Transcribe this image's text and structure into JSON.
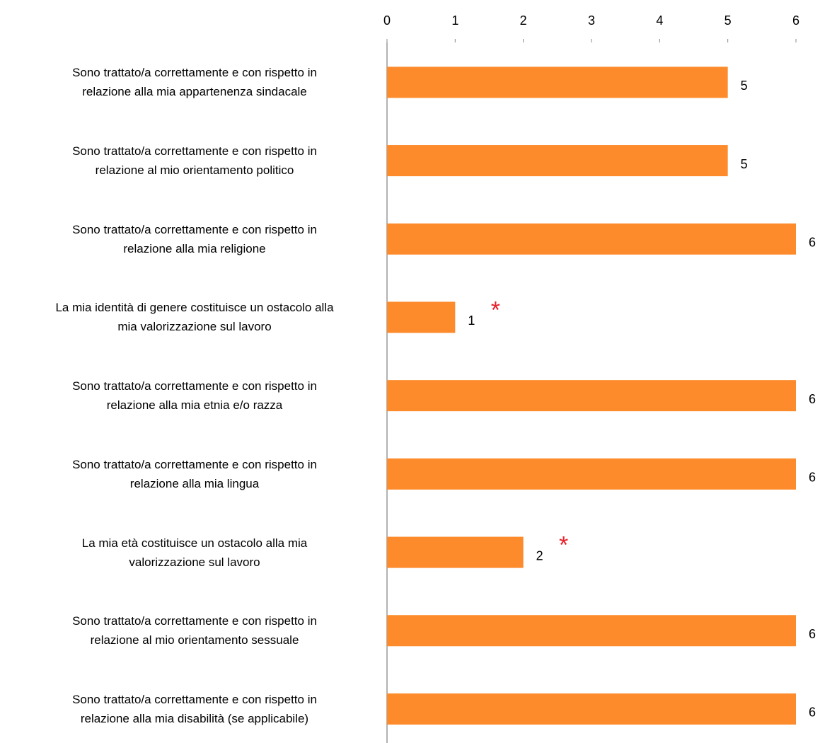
{
  "chart_data": {
    "type": "bar",
    "orientation": "horizontal",
    "categories": [
      "Sono trattato/a correttamente e con rispetto in\nrelazione alla mia appartenenza sindacale",
      "Sono trattato/a correttamente e con rispetto in\nrelazione al mio orientamento politico",
      "Sono trattato/a correttamente e con rispetto in\nrelazione alla mia religione",
      "La mia identità di genere costituisce un ostacolo alla\nmia valorizzazione sul lavoro",
      "Sono trattato/a correttamente e con rispetto in\nrelazione alla mia etnia e/o razza",
      "Sono trattato/a correttamente e con rispetto in\nrelazione alla mia lingua",
      "La mia età costituisce un ostacolo alla mia\nvalorizzazione sul lavoro",
      "Sono trattato/a correttamente e con rispetto in\nrelazione al mio orientamento sessuale",
      "Sono trattato/a correttamente e con rispetto in\nrelazione alla mia disabilità (se applicabile)"
    ],
    "values": [
      5,
      5,
      6,
      1,
      6,
      6,
      2,
      6,
      6
    ],
    "color": "#fd8a2b",
    "xlim": [
      0,
      6
    ],
    "xticks": [
      0,
      1,
      2,
      3,
      4,
      5,
      6
    ],
    "annotations": [
      {
        "category": "La mia identità di genere costituisce un ostacolo alla\nmia valorizzazione sul lavoro",
        "text": "*",
        "color": "#e8202a"
      },
      {
        "category": "La mia età costituisce un ostacolo alla mia\nvalorizzazione sul lavoro",
        "text": "*",
        "color": "#e8202a"
      }
    ]
  }
}
